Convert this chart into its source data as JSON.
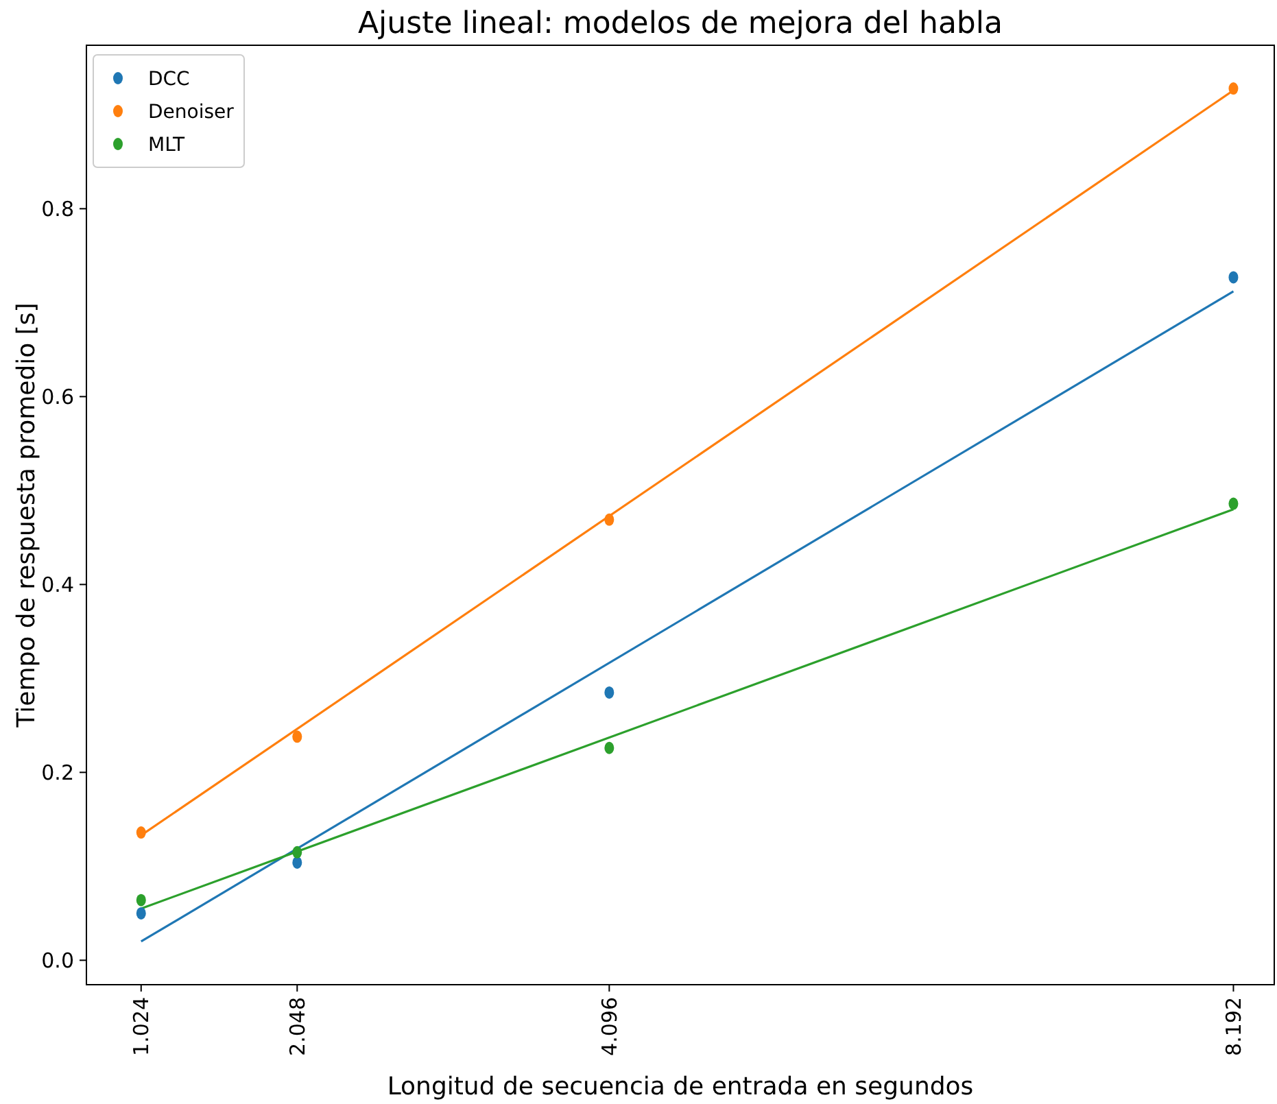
{
  "chart_data": {
    "type": "scatter",
    "title": "Ajuste lineal: modelos de mejora del habla",
    "xlabel": "Longitud de secuencia de entrada en segundos",
    "ylabel": "Tiempo de respuesta promedio [s]",
    "xlim": [
      0.665,
      8.46
    ],
    "ylim": [
      -0.026,
      0.974
    ],
    "xticks": [
      1.024,
      2.048,
      4.096,
      8.192
    ],
    "yticks": [
      {
        "value": 0,
        "label": "0.0"
      },
      0.2,
      0.4,
      0.6,
      0.8
    ],
    "grid": false,
    "legend": "top left",
    "marker": "circle",
    "series": [
      {
        "type": "line",
        "marker": "none",
        "color": "#1f77b4",
        "x": [
          1.024,
          8.192
        ],
        "values": [
          0.02,
          0.712
        ]
      },
      {
        "type": "line",
        "marker": "none",
        "color": "#ff7f0e",
        "x": [
          1.024,
          8.192
        ],
        "values": [
          0.133,
          0.926
        ]
      },
      {
        "type": "line",
        "marker": "none",
        "color": "#2ca02c",
        "x": [
          1.024,
          8.192
        ],
        "values": [
          0.055,
          0.48
        ]
      },
      {
        "name": "DCC",
        "color": "#1f77b4",
        "x": [
          1.024,
          2.048,
          4.096,
          8.192
        ],
        "values": [
          0.05,
          0.104,
          0.285,
          0.727
        ]
      },
      {
        "name": "Denoiser",
        "color": "#ff7f0e",
        "x": [
          1.024,
          2.048,
          4.096,
          8.192
        ],
        "values": [
          0.136,
          0.238,
          0.469,
          0.928
        ]
      },
      {
        "name": "MLT",
        "color": "#2ca02c",
        "x": [
          1.024,
          2.048,
          4.096,
          8.192
        ],
        "values": [
          0.064,
          0.115,
          0.226,
          0.486
        ]
      }
    ]
  }
}
